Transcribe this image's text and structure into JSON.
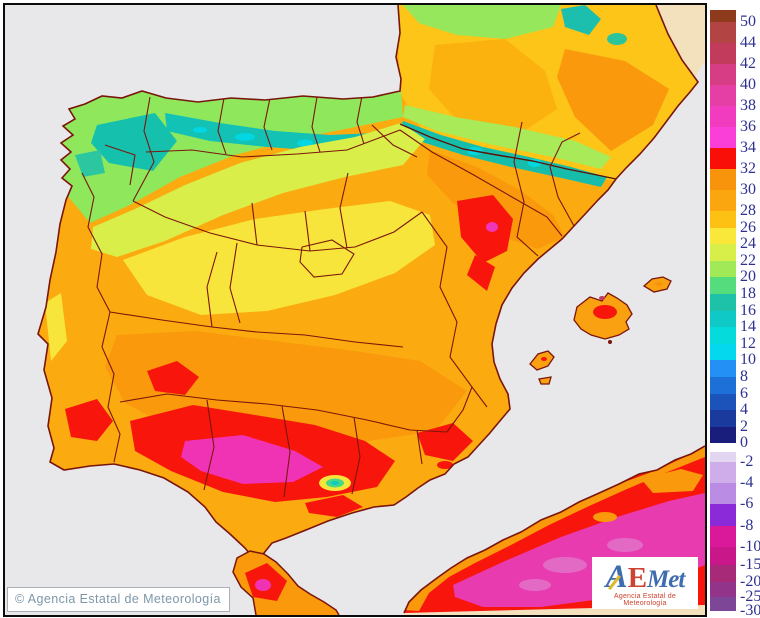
{
  "legend": {
    "tick_color": "#2d3191",
    "positive_bands": [
      {
        "value": "50",
        "color": "#8e3a1d"
      },
      {
        "value": "44",
        "color": "#b24444"
      },
      {
        "value": "42",
        "color": "#c23a5c"
      },
      {
        "value": "40",
        "color": "#d63d85"
      },
      {
        "value": "38",
        "color": "#e53ea4"
      },
      {
        "value": "36",
        "color": "#f13cc0"
      },
      {
        "value": "34",
        "color": "#fa3ed8"
      },
      {
        "value": "32",
        "color": "#fa0f08"
      },
      {
        "value": "30",
        "color": "#f8940c"
      },
      {
        "value": "28",
        "color": "#fba50f"
      },
      {
        "value": "26",
        "color": "#fdc113"
      },
      {
        "value": "24",
        "color": "#f9e839"
      },
      {
        "value": "22",
        "color": "#d8ef49"
      },
      {
        "value": "20",
        "color": "#a2e957"
      },
      {
        "value": "18",
        "color": "#55dd7d"
      },
      {
        "value": "16",
        "color": "#1dc2a9"
      },
      {
        "value": "14",
        "color": "#0ec9c6"
      },
      {
        "value": "12",
        "color": "#06dbdb"
      },
      {
        "value": "10",
        "color": "#04d8ef"
      },
      {
        "value": "8",
        "color": "#2290f5"
      },
      {
        "value": "6",
        "color": "#1d70d8"
      },
      {
        "value": "4",
        "color": "#1b53ba"
      },
      {
        "value": "2",
        "color": "#1a3a9e"
      },
      {
        "value": "0",
        "color": "#191d7c"
      }
    ],
    "negative_bands": [
      {
        "value": "-2",
        "color": "#e3d6f1"
      },
      {
        "value": "-4",
        "color": "#cfadea"
      },
      {
        "value": "-6",
        "color": "#bb8ce4"
      },
      {
        "value": "-8",
        "color": "#8a2ad9"
      },
      {
        "value": "-10",
        "color": "#da189a"
      },
      {
        "value": "-15",
        "color": "#c91689"
      },
      {
        "value": "-20",
        "color": "#a62a78"
      },
      {
        "value": "-25",
        "color": "#93348b"
      },
      {
        "value": "-30",
        "color": "#7d4697"
      }
    ]
  },
  "map": {
    "sea_color": "#e8e8ea",
    "outside_data_color": "#f3e1bd",
    "coast_border_color": "#7a150c",
    "frame_color": "#0b0b0b"
  },
  "footer": {
    "copyright": "© Agencia Estatal de Meteorología"
  },
  "logo": {
    "a": "A",
    "e": "E",
    "met": "Met",
    "subtitle": "Agencia Estatal de Meteorología"
  },
  "chart_data": {
    "type": "heatmap",
    "title": "",
    "legend_tick_values": [
      50,
      44,
      42,
      40,
      38,
      36,
      34,
      32,
      30,
      28,
      26,
      24,
      22,
      20,
      18,
      16,
      14,
      12,
      10,
      8,
      6,
      4,
      2,
      0,
      -2,
      -4,
      -6,
      -8,
      -10,
      -15,
      -20,
      -25,
      -30
    ]
  }
}
